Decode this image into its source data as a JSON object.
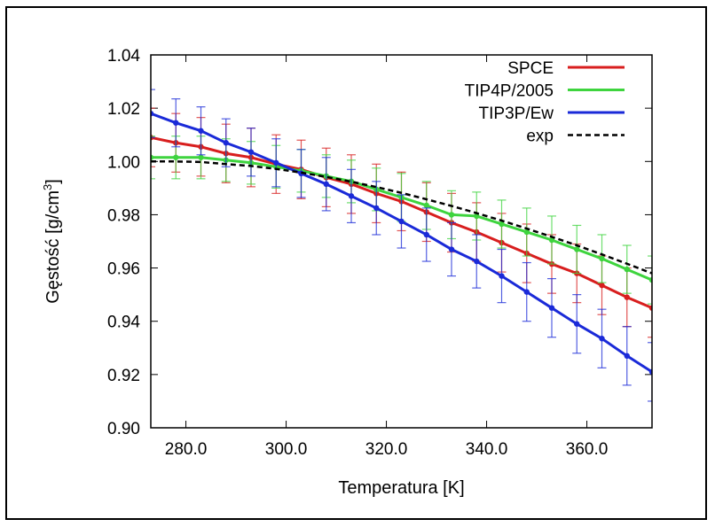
{
  "chart_data": {
    "type": "line",
    "title": "",
    "xlabel": "Temperatura [K]",
    "ylabel_main": "Gęstość [g/cm",
    "ylabel_sup": "3",
    "ylabel_close": "]",
    "xlim": [
      273,
      373
    ],
    "ylim": [
      0.9,
      1.04
    ],
    "x_ticks": [
      280,
      300,
      320,
      340,
      360
    ],
    "x_tick_labels": [
      "280.0",
      "300.0",
      "320.0",
      "340.0",
      "360.0"
    ],
    "y_ticks": [
      0.9,
      0.92,
      0.94,
      0.96,
      0.98,
      1.0,
      1.02,
      1.04
    ],
    "y_tick_labels": [
      "0.90",
      "0.92",
      "0.94",
      "0.96",
      "0.98",
      "1.00",
      "1.02",
      "1.04"
    ],
    "grid": false,
    "legend_position": "top-right",
    "x": [
      273,
      278,
      283,
      288,
      293,
      298,
      303,
      308,
      313,
      318,
      323,
      328,
      333,
      338,
      343,
      348,
      353,
      358,
      363,
      368,
      373
    ],
    "series": [
      {
        "name": "SPCE",
        "color": "#d81e1e",
        "style": "solid",
        "values": [
          1.009,
          1.007,
          1.0055,
          1.003,
          1.0015,
          0.999,
          0.997,
          0.994,
          0.9915,
          0.988,
          0.985,
          0.981,
          0.977,
          0.9735,
          0.9695,
          0.9655,
          0.9615,
          0.958,
          0.9535,
          0.949,
          0.945
        ],
        "errors": [
          0.011,
          0.011,
          0.011,
          0.011,
          0.011,
          0.011,
          0.011,
          0.011,
          0.011,
          0.011,
          0.011,
          0.011,
          0.011,
          0.011,
          0.011,
          0.011,
          0.011,
          0.011,
          0.011,
          0.011,
          0.011
        ]
      },
      {
        "name": "TIP4P/2005",
        "color": "#3ed43e",
        "style": "solid",
        "values": [
          1.0015,
          1.0015,
          1.0015,
          1.0005,
          0.9995,
          0.998,
          0.9965,
          0.9945,
          0.9925,
          0.9895,
          0.9865,
          0.9835,
          0.98,
          0.9795,
          0.9765,
          0.9735,
          0.9705,
          0.967,
          0.9635,
          0.9595,
          0.9555
        ],
        "errors": [
          0.008,
          0.008,
          0.008,
          0.008,
          0.008,
          0.008,
          0.008,
          0.008,
          0.008,
          0.008,
          0.009,
          0.009,
          0.009,
          0.009,
          0.009,
          0.009,
          0.009,
          0.009,
          0.009,
          0.009,
          0.009
        ]
      },
      {
        "name": "TIP3P/Ew",
        "color": "#1a2ad8",
        "style": "solid",
        "values": [
          1.018,
          1.0145,
          1.0115,
          1.007,
          1.0035,
          0.9995,
          0.9955,
          0.9915,
          0.987,
          0.9825,
          0.9775,
          0.9725,
          0.967,
          0.9625,
          0.957,
          0.951,
          0.945,
          0.939,
          0.9335,
          0.927,
          0.921
        ],
        "errors": [
          0.009,
          0.009,
          0.009,
          0.009,
          0.009,
          0.009,
          0.009,
          0.01,
          0.01,
          0.01,
          0.01,
          0.01,
          0.01,
          0.01,
          0.01,
          0.011,
          0.011,
          0.011,
          0.011,
          0.011,
          0.011
        ]
      },
      {
        "name": "exp",
        "color": "#000000",
        "style": "dashed",
        "values": [
          1.0,
          1.0,
          0.9998,
          0.999,
          0.9983,
          0.9972,
          0.9958,
          0.9942,
          0.9924,
          0.9904,
          0.9882,
          0.9858,
          0.9833,
          0.9806,
          0.9778,
          0.9748,
          0.9717,
          0.9685,
          0.9651,
          0.9616,
          0.958
        ],
        "errors": null
      }
    ]
  }
}
